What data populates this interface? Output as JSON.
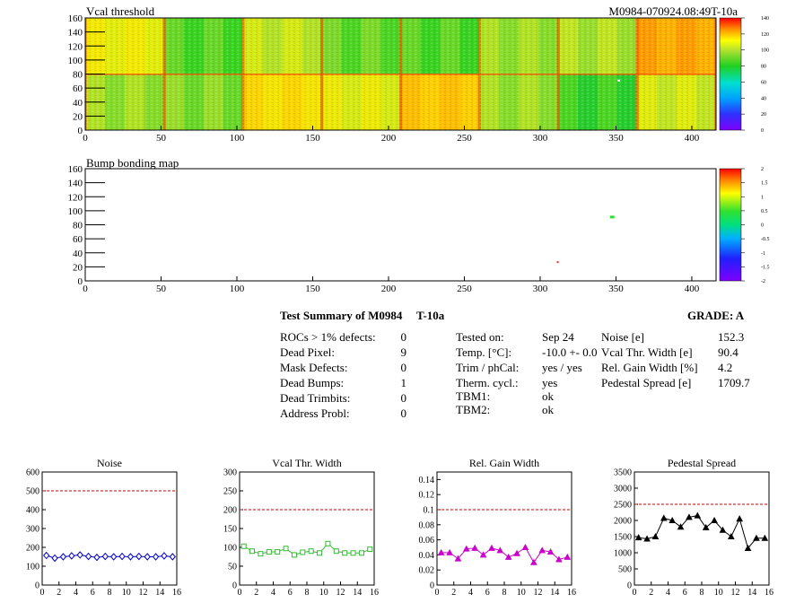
{
  "top_panel": {
    "title": "Vcal threshold",
    "module_label": "M0984-070924.08:49T-10a",
    "color_scale_labels": [
      "0",
      "20",
      "40",
      "60",
      "80",
      "100",
      "120",
      "140"
    ]
  },
  "bump_panel": {
    "title": "Bump bonding map",
    "color_scale_labels": [
      "-2",
      "-1.5",
      "-1",
      "-0.5",
      "0",
      "0.5",
      "1",
      "1.5",
      "2"
    ]
  },
  "summary": {
    "title": "Test Summary of M0984",
    "test_label": "T-10a",
    "grade_label": "GRADE:  A",
    "col1_labels": [
      "ROCs > 1% defects:",
      "Dead Pixel:",
      "Mask Defects:",
      "Dead Bumps:",
      "Dead Trimbits:",
      "Address Probl:"
    ],
    "col1_values": [
      "0",
      "9",
      "0",
      "1",
      "0",
      "0"
    ],
    "col2_labels": [
      "Tested on:",
      "Temp. [°C]:",
      "Trim / phCal:",
      "Therm. cycl.:",
      "TBM1:",
      "TBM2:"
    ],
    "col2_values": [
      "Sep 24",
      "-10.0 +- 0.0",
      "yes / yes",
      "yes",
      "ok",
      "ok"
    ],
    "col3_labels": [
      "Noise [e]",
      "Vcal Thr. Width [e]",
      "Rel. Gain Width [%]",
      "Pedestal Spread [e]"
    ],
    "col3_values": [
      "152.3",
      "90.4",
      "4.2",
      "1709.7"
    ]
  },
  "chart_data": [
    {
      "type": "heatmap",
      "title": "Vcal threshold",
      "xlim": [
        0,
        416
      ],
      "ylim": [
        0,
        160
      ],
      "x_ticks": [
        "0",
        "50",
        "100",
        "150",
        "200",
        "250",
        "300",
        "350",
        "400"
      ],
      "y_ticks": [
        "0",
        "20",
        "40",
        "60",
        "80",
        "100",
        "120",
        "140",
        "160"
      ],
      "zlim": [
        0,
        140
      ],
      "roc_mean_thresholds": {
        "upper_row": [
          85,
          65,
          78,
          67,
          65,
          73,
          75,
          108
        ],
        "lower_row": [
          73,
          70,
          92,
          83,
          100,
          73,
          62,
          80
        ]
      }
    },
    {
      "type": "heatmap",
      "title": "Bump bonding map",
      "xlim": [
        0,
        416
      ],
      "ylim": [
        0,
        160
      ],
      "x_ticks": [
        "0",
        "50",
        "100",
        "150",
        "200",
        "250",
        "300",
        "350",
        "400"
      ],
      "y_ticks": [
        "0",
        "20",
        "40",
        "60",
        "80",
        "100",
        "120",
        "140",
        "160"
      ],
      "zlim": [
        -2,
        2
      ],
      "points": [
        {
          "x": 346,
          "y": 93,
          "z": 0.5
        },
        {
          "x": 311,
          "y": 28,
          "z": 2
        }
      ]
    },
    {
      "type": "line",
      "title": "Noise",
      "xlim": [
        0,
        16
      ],
      "ylim": [
        0,
        600
      ],
      "x_ticks": [
        "0",
        "2",
        "4",
        "6",
        "8",
        "10",
        "12",
        "14",
        "16"
      ],
      "y_ticks": [
        "0",
        "100",
        "200",
        "300",
        "400",
        "500",
        "600"
      ],
      "threshold": 500,
      "color": "#0000cc",
      "marker": "diamond",
      "x": [
        0.5,
        1.5,
        2.5,
        3.5,
        4.5,
        5.5,
        6.5,
        7.5,
        8.5,
        9.5,
        10.5,
        11.5,
        12.5,
        13.5,
        14.5,
        15.5
      ],
      "values": [
        157,
        143,
        150,
        155,
        160,
        152,
        147,
        152,
        150,
        152,
        150,
        152,
        150,
        150,
        155,
        150
      ]
    },
    {
      "type": "line",
      "title": "Vcal Thr. Width",
      "xlim": [
        0,
        16
      ],
      "ylim": [
        0,
        300
      ],
      "x_ticks": [
        "0",
        "2",
        "4",
        "6",
        "8",
        "10",
        "12",
        "14",
        "16"
      ],
      "y_ticks": [
        "0",
        "50",
        "100",
        "150",
        "200",
        "250",
        "300"
      ],
      "threshold": 200,
      "color": "#33bb33",
      "marker": "square",
      "x": [
        0.5,
        1.5,
        2.5,
        3.5,
        4.5,
        5.5,
        6.5,
        7.5,
        8.5,
        9.5,
        10.5,
        11.5,
        12.5,
        13.5,
        14.5,
        15.5
      ],
      "values": [
        103,
        90,
        83,
        88,
        88,
        97,
        80,
        87,
        90,
        85,
        110,
        90,
        85,
        85,
        85,
        95
      ]
    },
    {
      "type": "line",
      "title": "Rel. Gain Width",
      "xlim": [
        0,
        16
      ],
      "ylim": [
        0,
        0.15
      ],
      "x_ticks": [
        "0",
        "2",
        "4",
        "6",
        "8",
        "10",
        "12",
        "14",
        "16"
      ],
      "y_ticks": [
        "0",
        "0.02",
        "0.04",
        "0.06",
        "0.08",
        "0.1",
        "0.12",
        "0.14"
      ],
      "threshold": 0.1,
      "color": "#cc00cc",
      "marker": "triangle",
      "x": [
        0.5,
        1.5,
        2.5,
        3.5,
        4.5,
        5.5,
        6.5,
        7.5,
        8.5,
        9.5,
        10.5,
        11.5,
        12.5,
        13.5,
        14.5,
        15.5
      ],
      "values": [
        0.043,
        0.043,
        0.035,
        0.048,
        0.049,
        0.04,
        0.049,
        0.046,
        0.037,
        0.042,
        0.05,
        0.03,
        0.046,
        0.044,
        0.034,
        0.037
      ]
    },
    {
      "type": "line",
      "title": "Pedestal Spread",
      "xlim": [
        0,
        16
      ],
      "ylim": [
        0,
        3500
      ],
      "x_ticks": [
        "0",
        "2",
        "4",
        "6",
        "8",
        "10",
        "12",
        "14",
        "16"
      ],
      "y_ticks": [
        "0",
        "500",
        "1000",
        "1500",
        "2000",
        "2500",
        "3000",
        "3500"
      ],
      "threshold": 2500,
      "color": "#000000",
      "marker": "triangle",
      "x": [
        0.5,
        1.5,
        2.5,
        3.5,
        4.5,
        5.5,
        6.5,
        7.5,
        8.5,
        9.5,
        10.5,
        11.5,
        12.5,
        13.5,
        14.5,
        15.5
      ],
      "values": [
        1470,
        1430,
        1500,
        2070,
        2000,
        1800,
        2100,
        2150,
        1780,
        2000,
        1700,
        1500,
        2050,
        1140,
        1450,
        1450
      ]
    }
  ]
}
